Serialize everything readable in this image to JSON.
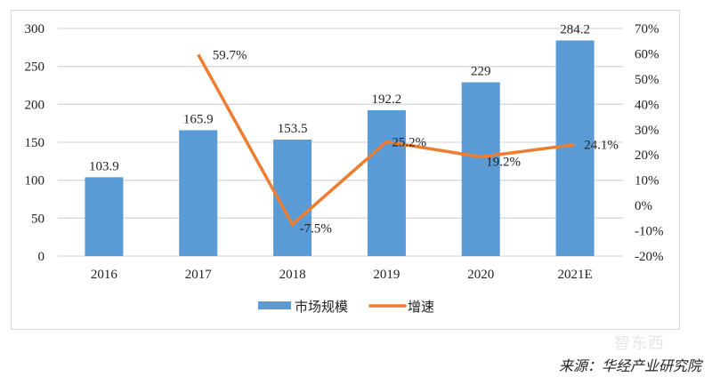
{
  "chart_data": {
    "type": "bar",
    "combo": "bar+line",
    "title": "",
    "xlabel": "",
    "ylabel": "",
    "categories": [
      "2016",
      "2017",
      "2018",
      "2019",
      "2020",
      "2021E"
    ],
    "series": [
      {
        "name": "市场规模",
        "type": "bar",
        "axis": "left",
        "color": "#5b9bd5",
        "values": [
          103.9,
          165.9,
          153.5,
          192.2,
          229,
          284.2
        ],
        "labels": [
          "103.9",
          "165.9",
          "153.5",
          "192.2",
          "229",
          "284.2"
        ]
      },
      {
        "name": "增速",
        "type": "line",
        "axis": "right",
        "color": "#ed7d31",
        "values": [
          null,
          59.7,
          -7.5,
          25.2,
          19.2,
          24.1
        ],
        "labels": [
          "",
          "59.7%",
          "-7.5%",
          "25.2%",
          "19.2%",
          "24.1%"
        ]
      }
    ],
    "ylim": [
      0,
      300
    ],
    "y_ticks": [
      "0",
      "50",
      "100",
      "150",
      "200",
      "250",
      "300"
    ],
    "y2lim": [
      -20,
      70
    ],
    "y2_ticks": [
      "-20%",
      "-10%",
      "0%",
      "10%",
      "20%",
      "30%",
      "40%",
      "50%",
      "60%",
      "70%"
    ],
    "grid": true,
    "legend_position": "bottom"
  },
  "legend": {
    "bar_label": "市场规模",
    "line_label": "增速"
  },
  "source": "来源：华经产业研究院",
  "watermark": "智东西"
}
